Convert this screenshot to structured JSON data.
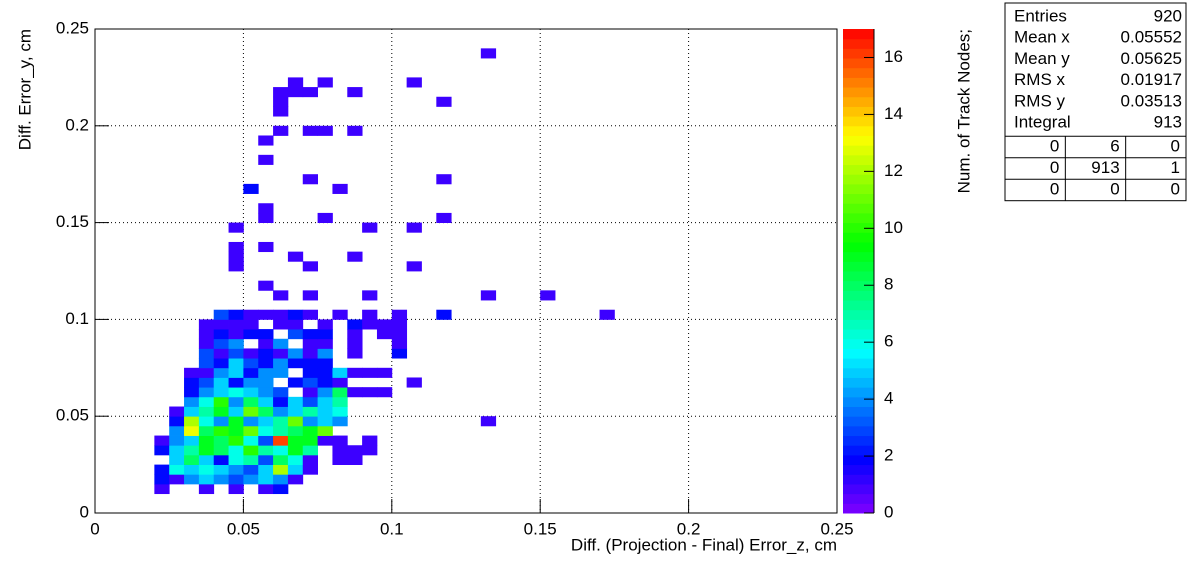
{
  "chart_data": {
    "type": "hist2d",
    "xlabel": "Diff. (Projection - Final) Error_z, cm",
    "ylabel": "Diff. Error_y, cm",
    "zlabel": "Num. of Track Nodes;",
    "xlim": [
      0,
      0.25
    ],
    "ylim": [
      0,
      0.25
    ],
    "zlim": [
      0,
      17
    ],
    "xticks": [
      0,
      0.05,
      0.1,
      0.15,
      0.2,
      0.25
    ],
    "yticks": [
      0,
      0.05,
      0.1,
      0.15,
      0.2,
      0.25
    ],
    "zticks": [
      0,
      2,
      4,
      6,
      8,
      10,
      12,
      14,
      16
    ],
    "grid": true,
    "xbins": [
      0,
      0.005,
      0.01,
      0.015,
      0.02,
      0.025,
      0.03,
      0.035,
      0.04,
      0.045,
      0.05,
      0.055,
      0.06,
      0.065,
      0.07,
      0.075,
      0.08,
      0.085,
      0.09,
      0.095,
      0.1,
      0.105,
      0.11,
      0.115,
      0.12,
      0.125,
      0.13,
      0.135,
      0.14,
      0.145,
      0.15,
      0.155,
      0.16,
      0.165,
      0.17,
      0.175,
      0.18,
      0.185,
      0.19,
      0.195,
      0.2,
      0.205,
      0.21,
      0.215,
      0.22,
      0.225,
      0.23,
      0.235,
      0.24,
      0.245,
      0.25
    ],
    "ybins": [
      0,
      0.005,
      0.01,
      0.015,
      0.02,
      0.025,
      0.03,
      0.035,
      0.04,
      0.045,
      0.05,
      0.055,
      0.06,
      0.065,
      0.07,
      0.075,
      0.08,
      0.085,
      0.09,
      0.095,
      0.1,
      0.105,
      0.11,
      0.115,
      0.12,
      0.125,
      0.13,
      0.135,
      0.14,
      0.145,
      0.15,
      0.155,
      0.16,
      0.165,
      0.17,
      0.175,
      0.18,
      0.185,
      0.19,
      0.195,
      0.2,
      0.205,
      0.21,
      0.215,
      0.22,
      0.225,
      0.23,
      0.235,
      0.24,
      0.245,
      0.25
    ],
    "x": [
      0.02,
      0.035,
      0.045,
      0.055,
      0.06,
      0.02,
      0.025,
      0.03,
      0.035,
      0.04,
      0.045,
      0.05,
      0.055,
      0.06,
      0.065,
      0.02,
      0.025,
      0.03,
      0.035,
      0.04,
      0.045,
      0.05,
      0.055,
      0.06,
      0.065,
      0.07,
      0.025,
      0.03,
      0.035,
      0.04,
      0.045,
      0.05,
      0.055,
      0.06,
      0.065,
      0.07,
      0.08,
      0.085,
      0.02,
      0.025,
      0.03,
      0.035,
      0.04,
      0.045,
      0.05,
      0.055,
      0.06,
      0.065,
      0.07,
      0.08,
      0.085,
      0.09,
      0.02,
      0.025,
      0.03,
      0.035,
      0.04,
      0.045,
      0.05,
      0.055,
      0.06,
      0.065,
      0.07,
      0.075,
      0.08,
      0.09,
      0.025,
      0.03,
      0.035,
      0.04,
      0.045,
      0.05,
      0.055,
      0.06,
      0.065,
      0.07,
      0.075,
      0.025,
      0.03,
      0.035,
      0.04,
      0.045,
      0.05,
      0.055,
      0.06,
      0.065,
      0.07,
      0.075,
      0.08,
      0.13,
      0.025,
      0.03,
      0.035,
      0.04,
      0.045,
      0.05,
      0.055,
      0.06,
      0.065,
      0.07,
      0.075,
      0.08,
      0.03,
      0.035,
      0.04,
      0.045,
      0.05,
      0.055,
      0.06,
      0.065,
      0.07,
      0.075,
      0.08,
      0.03,
      0.035,
      0.04,
      0.045,
      0.05,
      0.055,
      0.06,
      0.07,
      0.075,
      0.08,
      0.085,
      0.09,
      0.095,
      0.03,
      0.035,
      0.04,
      0.045,
      0.05,
      0.055,
      0.065,
      0.07,
      0.075,
      0.08,
      0.105,
      0.03,
      0.035,
      0.04,
      0.045,
      0.05,
      0.055,
      0.06,
      0.07,
      0.075,
      0.08,
      0.085,
      0.09,
      0.095,
      0.035,
      0.04,
      0.045,
      0.05,
      0.055,
      0.06,
      0.065,
      0.07,
      0.075,
      0.035,
      0.04,
      0.045,
      0.05,
      0.055,
      0.06,
      0.065,
      0.07,
      0.075,
      0.085,
      0.1,
      0.035,
      0.04,
      0.045,
      0.055,
      0.06,
      0.07,
      0.075,
      0.085,
      0.1,
      0.035,
      0.04,
      0.045,
      0.05,
      0.055,
      0.065,
      0.07,
      0.075,
      0.085,
      0.095,
      0.1,
      0.035,
      0.04,
      0.045,
      0.05,
      0.06,
      0.065,
      0.075,
      0.085,
      0.09,
      0.095,
      0.1,
      0.04,
      0.045,
      0.05,
      0.055,
      0.06,
      0.065,
      0.07,
      0.08,
      0.09,
      0.1,
      0.115,
      0.17,
      0.06,
      0.07,
      0.09,
      0.13,
      0.15,
      0.055,
      0.045,
      0.07,
      0.105,
      0.045,
      0.065,
      0.085,
      0.045,
      0.055,
      0.045,
      0.09,
      0.105,
      0.055,
      0.075,
      0.115,
      0.055,
      0.05,
      0.08,
      0.07,
      0.115,
      0.055,
      0.055,
      0.06,
      0.07,
      0.075,
      0.085,
      0.06,
      0.06,
      0.115,
      0.06,
      0.065,
      0.07,
      0.085,
      0.065,
      0.075,
      0.105,
      0.13
    ],
    "y": [
      0.01,
      0.01,
      0.01,
      0.01,
      0.01,
      0.015,
      0.015,
      0.015,
      0.015,
      0.015,
      0.015,
      0.015,
      0.015,
      0.015,
      0.015,
      0.02,
      0.02,
      0.02,
      0.02,
      0.02,
      0.02,
      0.02,
      0.02,
      0.02,
      0.02,
      0.02,
      0.025,
      0.025,
      0.025,
      0.025,
      0.025,
      0.025,
      0.025,
      0.025,
      0.025,
      0.025,
      0.025,
      0.025,
      0.03,
      0.03,
      0.03,
      0.03,
      0.03,
      0.03,
      0.03,
      0.03,
      0.03,
      0.03,
      0.03,
      0.03,
      0.03,
      0.03,
      0.035,
      0.035,
      0.035,
      0.035,
      0.035,
      0.035,
      0.035,
      0.035,
      0.035,
      0.035,
      0.035,
      0.035,
      0.035,
      0.035,
      0.04,
      0.04,
      0.04,
      0.04,
      0.04,
      0.04,
      0.04,
      0.04,
      0.04,
      0.04,
      0.04,
      0.045,
      0.045,
      0.045,
      0.045,
      0.045,
      0.045,
      0.045,
      0.045,
      0.045,
      0.045,
      0.045,
      0.045,
      0.045,
      0.05,
      0.05,
      0.05,
      0.05,
      0.05,
      0.05,
      0.05,
      0.05,
      0.05,
      0.05,
      0.05,
      0.05,
      0.055,
      0.055,
      0.055,
      0.055,
      0.055,
      0.055,
      0.055,
      0.055,
      0.055,
      0.055,
      0.055,
      0.06,
      0.06,
      0.06,
      0.06,
      0.06,
      0.06,
      0.06,
      0.06,
      0.06,
      0.06,
      0.06,
      0.06,
      0.06,
      0.065,
      0.065,
      0.065,
      0.065,
      0.065,
      0.065,
      0.065,
      0.065,
      0.065,
      0.065,
      0.065,
      0.07,
      0.07,
      0.07,
      0.07,
      0.07,
      0.07,
      0.07,
      0.07,
      0.07,
      0.07,
      0.07,
      0.07,
      0.07,
      0.075,
      0.075,
      0.075,
      0.075,
      0.075,
      0.075,
      0.075,
      0.075,
      0.075,
      0.08,
      0.08,
      0.08,
      0.08,
      0.08,
      0.08,
      0.08,
      0.08,
      0.08,
      0.08,
      0.08,
      0.085,
      0.085,
      0.085,
      0.085,
      0.085,
      0.085,
      0.085,
      0.085,
      0.085,
      0.09,
      0.09,
      0.09,
      0.09,
      0.09,
      0.09,
      0.09,
      0.09,
      0.09,
      0.09,
      0.09,
      0.095,
      0.095,
      0.095,
      0.095,
      0.095,
      0.095,
      0.095,
      0.095,
      0.095,
      0.095,
      0.095,
      0.1,
      0.1,
      0.1,
      0.1,
      0.1,
      0.1,
      0.1,
      0.1,
      0.1,
      0.1,
      0.1,
      0.1,
      0.11,
      0.11,
      0.11,
      0.11,
      0.11,
      0.115,
      0.125,
      0.125,
      0.125,
      0.13,
      0.13,
      0.13,
      0.135,
      0.135,
      0.145,
      0.145,
      0.145,
      0.15,
      0.15,
      0.15,
      0.155,
      0.165,
      0.165,
      0.17,
      0.17,
      0.18,
      0.19,
      0.195,
      0.195,
      0.195,
      0.195,
      0.205,
      0.21,
      0.21,
      0.215,
      0.215,
      0.215,
      0.215,
      0.22,
      0.22,
      0.22,
      0.235
    ],
    "values": [
      1,
      1,
      1,
      1,
      2,
      2,
      1,
      4,
      5,
      4,
      3,
      4,
      5,
      4,
      1,
      2,
      6,
      5,
      6,
      5,
      4,
      3,
      5,
      12,
      5,
      1,
      5,
      8,
      5,
      2,
      6,
      7,
      3,
      8,
      6,
      1,
      1,
      1,
      2,
      5,
      7,
      9,
      8,
      6,
      10,
      7,
      6,
      9,
      7,
      1,
      1,
      1,
      1,
      4,
      5,
      9,
      8,
      10,
      6,
      3,
      16,
      9,
      9,
      1,
      1,
      1,
      4,
      13,
      8,
      10,
      9,
      11,
      6,
      7,
      8,
      9,
      11,
      2,
      12,
      6,
      4,
      9,
      4,
      5,
      7,
      11,
      4,
      5,
      4,
      1,
      1,
      5,
      7,
      9,
      5,
      11,
      8,
      4,
      5,
      7,
      5,
      6,
      4,
      6,
      10,
      4,
      8,
      5,
      2,
      5,
      3,
      5,
      7,
      2,
      4,
      5,
      6,
      5,
      4,
      3,
      1,
      4,
      8,
      1,
      1,
      1,
      2,
      3,
      5,
      2,
      4,
      4,
      2,
      3,
      2,
      1,
      1,
      1,
      1,
      4,
      5,
      2,
      4,
      4,
      2,
      2,
      5,
      1,
      1,
      1,
      3,
      2,
      5,
      3,
      2,
      4,
      2,
      2,
      2,
      3,
      1,
      3,
      1,
      2,
      1,
      4,
      1,
      4,
      1,
      2,
      1,
      3,
      4,
      1,
      4,
      1,
      1,
      1,
      1,
      1,
      2,
      1,
      2,
      2,
      3,
      2,
      2,
      1,
      1,
      1,
      1,
      1,
      1,
      1,
      1,
      1,
      1,
      2,
      1,
      1,
      1,
      3,
      2,
      1,
      1,
      1,
      2,
      1,
      1,
      1,
      1,
      2,
      1,
      1,
      1,
      1,
      1,
      1,
      1,
      1,
      1,
      1,
      1,
      1,
      1,
      1,
      1,
      1,
      1,
      1,
      1,
      1,
      1,
      1,
      2,
      1,
      1,
      1,
      1,
      1,
      1,
      1,
      1,
      1,
      1,
      1,
      1,
      1,
      1,
      1,
      1,
      1,
      1,
      1,
      1
    ],
    "stats": {
      "rows": [
        [
          "Entries",
          920
        ],
        [
          "Mean x",
          0.05552
        ],
        [
          "Mean y",
          0.05625
        ],
        [
          "RMS x",
          0.01917
        ],
        [
          "RMS y",
          0.03513
        ],
        [
          "Integral",
          913
        ]
      ],
      "table": [
        [
          0,
          6,
          0
        ],
        [
          0,
          913,
          1
        ],
        [
          0,
          0,
          0
        ]
      ]
    }
  }
}
